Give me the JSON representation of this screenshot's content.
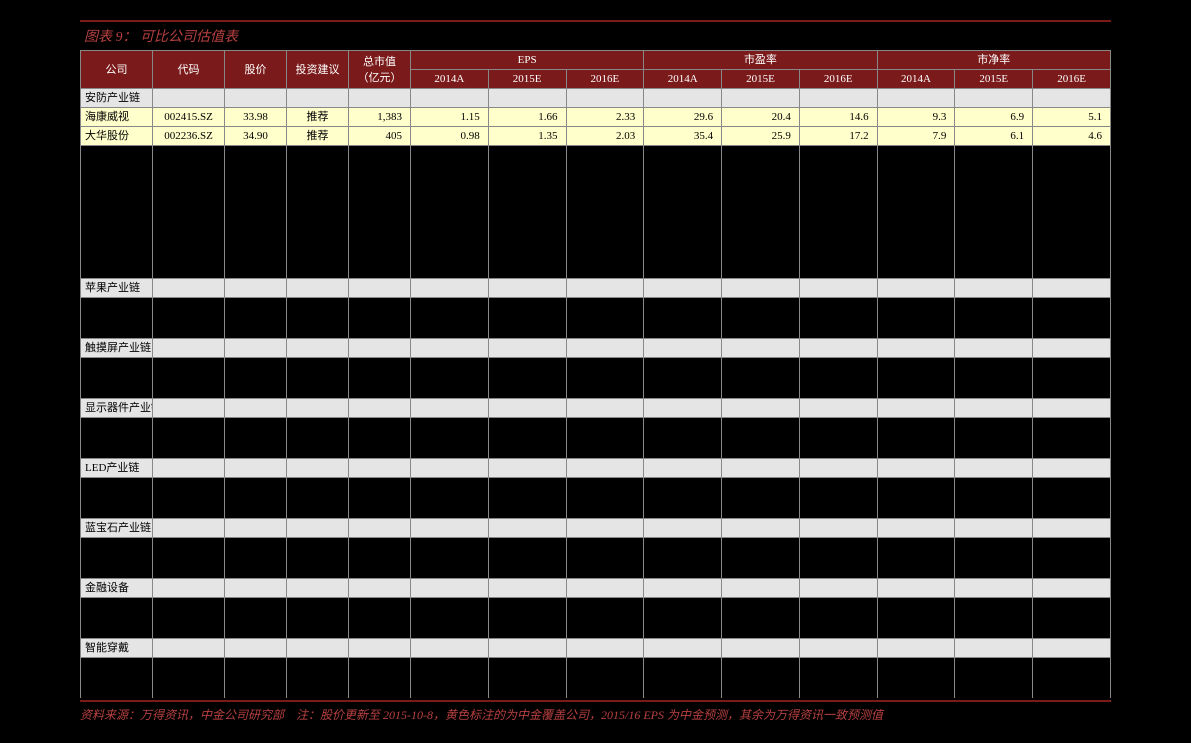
{
  "title": "图表 9： 可比公司估值表",
  "footer_note": "资料来源：万得资讯，中金公司研究部　注：股价更新至 2015-10-8，黄色标注的为中金覆盖公司，2015/16 EPS 为中金预测，其余为万得资讯一致预测值",
  "colors": {
    "header_bg": "#7a1a1a",
    "header_text": "#ffffff",
    "section_bg": "#e5e5e5",
    "data_bg": "#ffffcc",
    "border": "#888888",
    "title_text": "#b84040",
    "page_bg": "#000000"
  },
  "headers": {
    "company": "公司",
    "code": "代码",
    "price": "股价",
    "rating": "投资建议",
    "mktcap_line1": "总市值",
    "mktcap_line2": "（亿元）",
    "eps": "EPS",
    "pe": "市盈率",
    "pb": "市净率",
    "y2014a": "2014A",
    "y2015e": "2015E",
    "y2016e": "2016E"
  },
  "sections": [
    {
      "name": "安防产业链",
      "rows": [
        {
          "company": "海康威视",
          "code": "002415.SZ",
          "price": "33.98",
          "rating": "推荐",
          "mktcap": "1,383",
          "eps": [
            "1.15",
            "1.66",
            "2.33"
          ],
          "pe": [
            "29.6",
            "20.4",
            "14.6"
          ],
          "pb": [
            "9.3",
            "6.9",
            "5.1"
          ]
        },
        {
          "company": "大华股份",
          "code": "002236.SZ",
          "price": "34.90",
          "rating": "推荐",
          "mktcap": "405",
          "eps": [
            "0.98",
            "1.35",
            "2.03"
          ],
          "pe": [
            "35.4",
            "25.9",
            "17.2"
          ],
          "pb": [
            "7.9",
            "6.1",
            "4.6"
          ]
        }
      ],
      "tall_gap_after": true
    },
    {
      "name": "苹果产业链",
      "rows": []
    },
    {
      "name": "触摸屏产业链",
      "rows": []
    },
    {
      "name": "显示器件产业链",
      "rows": []
    },
    {
      "name": "LED产业链",
      "rows": []
    },
    {
      "name": "蓝宝石产业链",
      "rows": []
    },
    {
      "name": "金融设备",
      "rows": []
    },
    {
      "name": "智能穿戴",
      "rows": []
    }
  ]
}
